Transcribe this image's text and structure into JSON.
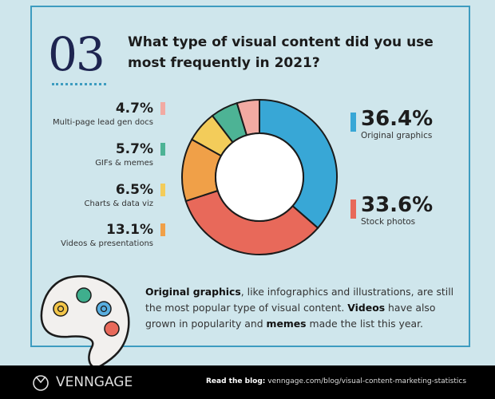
{
  "number": "03",
  "question": "What type of visual content did you use most frequently in 2021?",
  "chart_data": {
    "type": "pie",
    "variant": "donut",
    "categories": [
      "Original graphics",
      "Stock photos",
      "Videos & presentations",
      "Charts & data viz",
      "GIFs & memes",
      "Multi-page lead gen docs"
    ],
    "values": [
      36.4,
      33.6,
      13.1,
      6.5,
      5.7,
      4.7
    ],
    "labels": [
      "36.4%",
      "33.6%",
      "13.1%",
      "6.5%",
      "5.7%",
      "4.7%"
    ],
    "colors": [
      "#38a7d6",
      "#e8695a",
      "#f0a048",
      "#f3cc5a",
      "#4db395",
      "#f2aaa2"
    ]
  },
  "description": {
    "b1": "Original graphics",
    "t1": ", like infographics and illustrations, are still the most popular type of visual content. ",
    "b2": "Videos",
    "t2": " have also grown in popularity and ",
    "b3": "memes",
    "t3": " made the list this year."
  },
  "footer": {
    "brand": "VENNGAGE",
    "blog_label": "Read the blog:",
    "blog_url": "venngage.com/blog/visual-content-marketing-statistics"
  }
}
